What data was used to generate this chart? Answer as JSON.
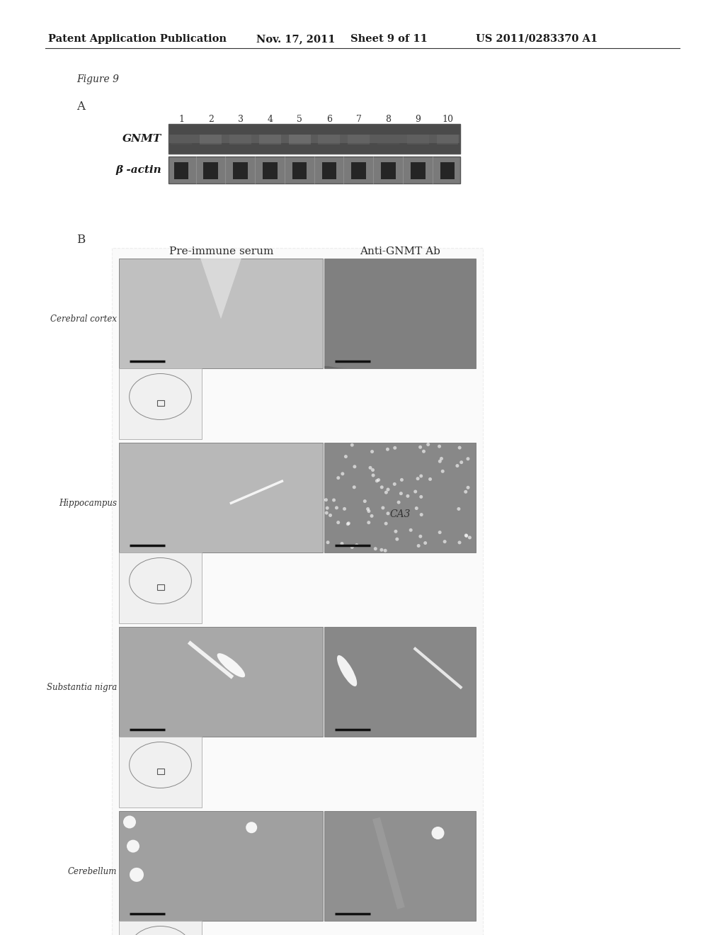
{
  "bg_color": "#ffffff",
  "header_text": "Patent Application Publication",
  "header_date": "Nov. 17, 2011",
  "header_sheet": "Sheet 9 of 11",
  "header_patent": "US 2011/0283370 A1",
  "figure_label": "Figure 9",
  "section_a_label": "A",
  "section_b_label": "B",
  "lane_numbers": [
    "1",
    "2",
    "3",
    "4",
    "5",
    "6",
    "7",
    "8",
    "9",
    "10"
  ],
  "gnmt_label": "GNMT",
  "beta_actin_label": "β -actin",
  "pre_immune_label": "Pre-immune serum",
  "anti_gnmt_label": "Anti-GNMT Ab",
  "row_labels": [
    "Cerebral cortex",
    "Hippocampus",
    "Substantia nigra",
    "Cerebellum"
  ],
  "ca3_label": "CA3",
  "gel_gnmt_color": "#4a4a4a",
  "gel_beta_color": "#7a7a7a",
  "pre_serum_color_top": "#c0c0c0",
  "pre_serum_color_bot": "#b5b5b5",
  "anti_gnmt_colors": [
    "#808080",
    "#888888",
    "#888888",
    "#909090"
  ],
  "pre_colors": [
    "#c0c0c0",
    "#b8b8b8",
    "#a8a8a8",
    "#a0a0a0"
  ],
  "brain_diagram_color": "#f0f0f0",
  "outer_bg": "#e8e8e8",
  "header_line_color": "#333333",
  "section_b_outline": "#cccccc"
}
